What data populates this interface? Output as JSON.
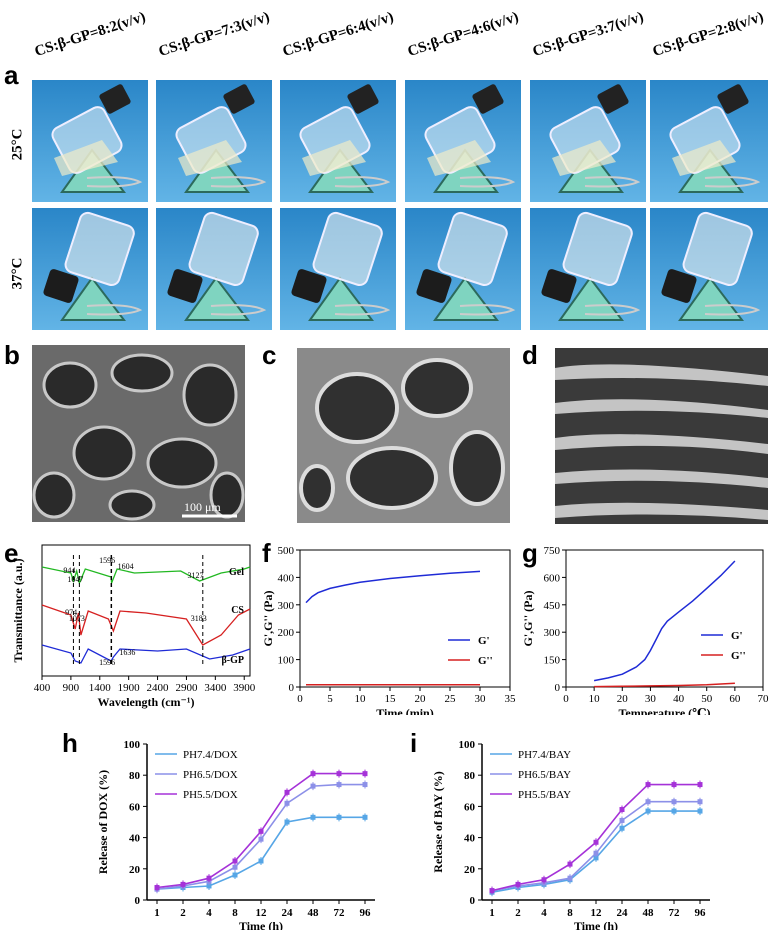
{
  "panel_a": {
    "letter": "a",
    "conditions": [
      "CS:β-GP=8:2(v/v)",
      "CS:β-GP=7:3(v/v)",
      "CS:β-GP=6:4(v/v)",
      "CS:β-GP=4:6(v/v)",
      "CS:β-GP=3:7(v/v)",
      "CS:β-GP=2:8(v/v)"
    ],
    "row_labels": [
      "25°C",
      "37°C"
    ]
  },
  "panel_b": {
    "letter": "b",
    "scale_bar": "100 μm"
  },
  "panel_c": {
    "letter": "c"
  },
  "panel_d": {
    "letter": "d"
  },
  "colors": {
    "blue": "#1f2bd6",
    "red": "#d62020",
    "green": "#22b822",
    "line_blue": "#56a6e6",
    "line_lav": "#8c90e8",
    "line_purple": "#a532d8"
  },
  "chart_data": [
    {
      "panel": "e",
      "type": "line",
      "xlabel": "Wavelength (cm⁻¹)",
      "ylabel": "Transmittance (a.u.)",
      "xlim": [
        400,
        4000
      ],
      "x_ticks": [
        "400",
        "900",
        "1400",
        "1900",
        "2400",
        "2900",
        "3400",
        "3900"
      ],
      "series": [
        {
          "name": "Gel",
          "color": "green"
        },
        {
          "name": "CS",
          "color": "red"
        },
        {
          "name": "β-GP",
          "color": "blue"
        }
      ],
      "annotations": [
        "944",
        "1047",
        "1596",
        "1604",
        "3127",
        "974",
        "1073",
        "3183",
        "1596",
        "1636"
      ]
    },
    {
      "panel": "f",
      "type": "line",
      "xlabel": "Time (min)",
      "ylabel": "G',G'' (Pa)",
      "xlim": [
        0,
        35
      ],
      "ylim": [
        0,
        500
      ],
      "x_ticks": [
        "0",
        "5",
        "10",
        "15",
        "20",
        "25",
        "30",
        "35"
      ],
      "y_ticks": [
        "0",
        "100",
        "200",
        "300",
        "400",
        "500"
      ],
      "series": [
        {
          "name": "G'",
          "color": "blue",
          "x": [
            1,
            2,
            3,
            5,
            7.5,
            10,
            15,
            20,
            25,
            30
          ],
          "y": [
            308,
            330,
            344,
            360,
            372,
            382,
            396,
            406,
            415,
            422
          ]
        },
        {
          "name": "G''",
          "color": "red",
          "x": [
            1,
            30
          ],
          "y": [
            8,
            8
          ]
        }
      ]
    },
    {
      "panel": "g",
      "type": "line",
      "xlabel": "Temperature (℃)",
      "ylabel": "G',G'' (Pa)",
      "xlim": [
        0,
        70
      ],
      "ylim": [
        0,
        750
      ],
      "x_ticks": [
        "0",
        "10",
        "20",
        "30",
        "40",
        "50",
        "60",
        "70"
      ],
      "y_ticks": [
        "0",
        "150",
        "300",
        "450",
        "600",
        "750"
      ],
      "series": [
        {
          "name": "G'",
          "color": "blue",
          "x": [
            10,
            15,
            20,
            25,
            28,
            30,
            32,
            34,
            36,
            40,
            45,
            50,
            55,
            60
          ],
          "y": [
            35,
            50,
            70,
            110,
            150,
            200,
            260,
            320,
            360,
            410,
            470,
            540,
            610,
            690
          ]
        },
        {
          "name": "G''",
          "color": "red",
          "x": [
            10,
            20,
            30,
            40,
            50,
            60
          ],
          "y": [
            2,
            4,
            6,
            8,
            12,
            20
          ]
        }
      ]
    },
    {
      "panel": "h",
      "type": "line",
      "xlabel": "Time (h)",
      "ylabel": "Release of DOX (%)",
      "categories": [
        "1",
        "2",
        "4",
        "8",
        "12",
        "24",
        "48",
        "72",
        "96"
      ],
      "ylim": [
        0,
        100
      ],
      "y_ticks": [
        "0",
        "20",
        "40",
        "60",
        "80",
        "100"
      ],
      "series": [
        {
          "name": "PH7.4/DOX",
          "color": "line_blue",
          "values": [
            7,
            8,
            9,
            16,
            25,
            50,
            53,
            53,
            53
          ]
        },
        {
          "name": "PH6.5/DOX",
          "color": "line_lav",
          "values": [
            7,
            9,
            12,
            21,
            39,
            62,
            73,
            74,
            74
          ]
        },
        {
          "name": "PH5.5/DOX",
          "color": "line_purple",
          "values": [
            8,
            10,
            14,
            25,
            44,
            69,
            81,
            81,
            81
          ]
        }
      ]
    },
    {
      "panel": "i",
      "type": "line",
      "xlabel": "Time (h)",
      "ylabel": "Release of BAY (%)",
      "categories": [
        "1",
        "2",
        "4",
        "8",
        "12",
        "24",
        "48",
        "72",
        "96"
      ],
      "ylim": [
        0,
        100
      ],
      "y_ticks": [
        "0",
        "20",
        "40",
        "60",
        "80",
        "100"
      ],
      "series": [
        {
          "name": "PH7.4/BAY",
          "color": "line_blue",
          "values": [
            5,
            8,
            10,
            13,
            27,
            46,
            57,
            57,
            57
          ]
        },
        {
          "name": "PH6.5/BAY",
          "color": "line_lav",
          "values": [
            6,
            9,
            11,
            14,
            30,
            51,
            63,
            63,
            63
          ]
        },
        {
          "name": "PH5.5/BAY",
          "color": "line_purple",
          "values": [
            6,
            10,
            13,
            23,
            37,
            58,
            74,
            74,
            74
          ]
        }
      ]
    }
  ]
}
